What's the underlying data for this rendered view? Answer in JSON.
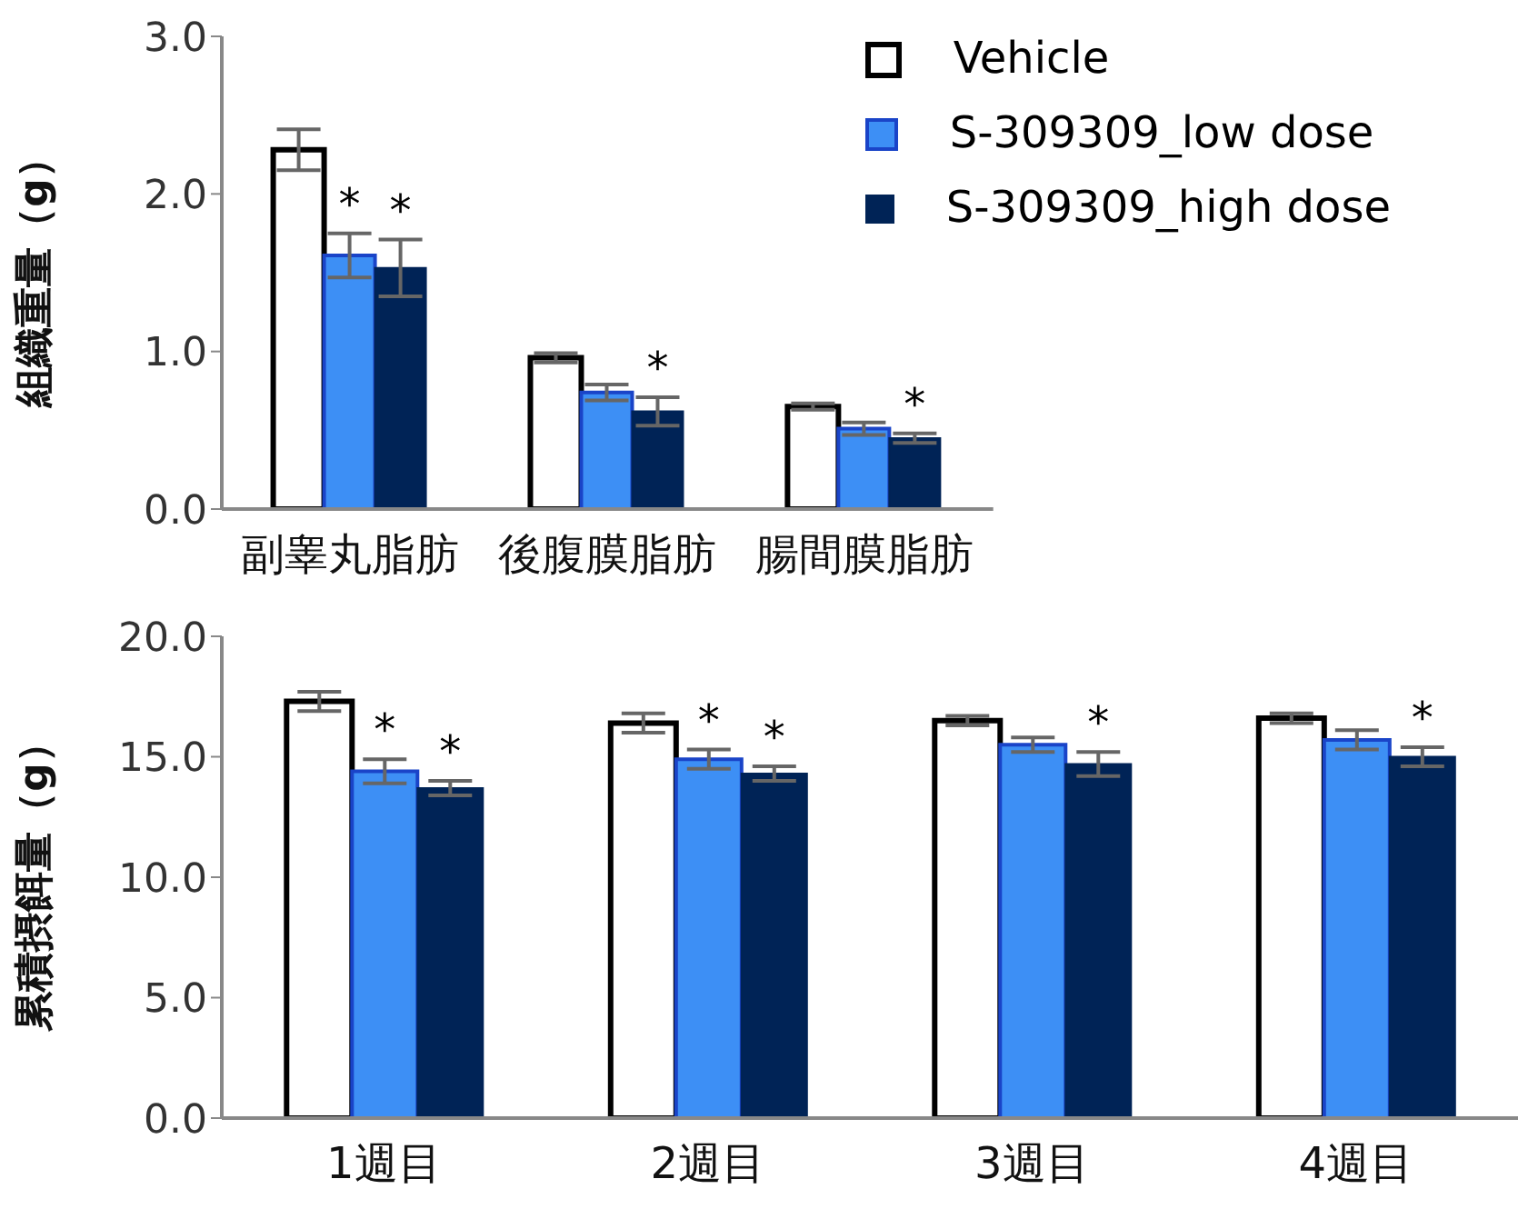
{
  "chart_data": [
    {
      "type": "bar",
      "ylabel": "組織重量（g）",
      "categories": [
        "副睾丸脂肪",
        "後腹膜脂肪",
        "腸間膜脂肪"
      ],
      "ylim": [
        0,
        3
      ],
      "yticks": [
        {
          "value": 0,
          "label": "0.0"
        },
        {
          "value": 1,
          "label": "1.0"
        },
        {
          "value": 2,
          "label": "2.0"
        },
        {
          "value": 3,
          "label": "3.0"
        }
      ],
      "grid": false,
      "legend": "top right",
      "series": [
        {
          "name": "Vehicle",
          "color": "#ffffff",
          "values": [
            2.28,
            0.96,
            0.65
          ],
          "errors": [
            0.13,
            0.03,
            0.02
          ]
        },
        {
          "name": "S-309309_low dose",
          "color": "#3d8ff5",
          "values": [
            1.61,
            0.74,
            0.51
          ],
          "errors": [
            0.14,
            0.05,
            0.04
          ],
          "value_labels": [
            "*",
            null,
            null
          ]
        },
        {
          "name": "S-309309_high dose",
          "color": "#002356",
          "values": [
            1.53,
            0.62,
            0.45
          ],
          "errors": [
            0.18,
            0.09,
            0.03
          ],
          "value_labels": [
            "*",
            "*",
            "*"
          ]
        }
      ]
    },
    {
      "type": "bar",
      "ylabel": "累積摂餌量（g）",
      "categories": [
        "1週目",
        "2週目",
        "3週目",
        "4週目"
      ],
      "ylim": [
        0,
        20
      ],
      "yticks": [
        {
          "value": 0,
          "label": "0.0"
        },
        {
          "value": 5,
          "label": "5.0"
        },
        {
          "value": 10,
          "label": "10.0"
        },
        {
          "value": 15,
          "label": "15.0"
        },
        {
          "value": 20,
          "label": "20.0"
        }
      ],
      "grid": false,
      "legend": false,
      "series": [
        {
          "color": "#ffffff",
          "values": [
            17.3,
            16.4,
            16.5,
            16.6
          ],
          "errors": [
            0.4,
            0.4,
            0.2,
            0.2
          ]
        },
        {
          "color": "#3d8ff5",
          "values": [
            14.4,
            14.9,
            15.5,
            15.7
          ],
          "errors": [
            0.5,
            0.4,
            0.3,
            0.4
          ],
          "value_labels": [
            "*",
            "*",
            null,
            null
          ]
        },
        {
          "color": "#002356",
          "values": [
            13.7,
            14.3,
            14.7,
            15.0
          ],
          "errors": [
            0.3,
            0.3,
            0.5,
            0.4
          ],
          "value_labels": [
            "*",
            "*",
            "*",
            "*"
          ]
        }
      ]
    }
  ]
}
